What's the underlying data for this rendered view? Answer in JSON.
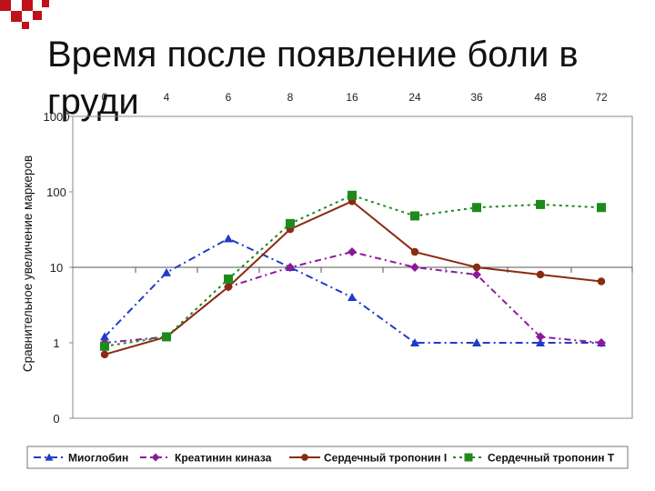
{
  "slide": {
    "title": "Время после появление боли в груди"
  },
  "chart_data": {
    "type": "line",
    "categories": [
      "0",
      "4",
      "6",
      "8",
      "16",
      "24",
      "36",
      "48",
      "72"
    ],
    "xaxis_position": "top",
    "ylabel": "Сравнительное увеличение маркеров",
    "yscale": "log",
    "ylim": [
      0.1,
      1000
    ],
    "yticks": [
      {
        "value": 0.1,
        "label": "0"
      },
      {
        "value": 1,
        "label": "1"
      },
      {
        "value": 10,
        "label": "10"
      },
      {
        "value": 100,
        "label": "100"
      },
      {
        "value": 1000,
        "label": "1000"
      }
    ],
    "grid": false,
    "legend": "bottom",
    "series": [
      {
        "name": "Миоглобин",
        "color": "#1f3cc8",
        "marker": "triangle",
        "dash": "8,4,2,4",
        "values": [
          1.2,
          8.5,
          24,
          10,
          4,
          1,
          1,
          1,
          1
        ]
      },
      {
        "name": "Креатинин киназа",
        "color": "#8b1a9b",
        "marker": "diamond",
        "dash": "7,4,2,4",
        "values": [
          1,
          1.2,
          5.5,
          10,
          16,
          10,
          8,
          1.2,
          1
        ]
      },
      {
        "name": "Сердечный тропонин I",
        "color": "#8b2a12",
        "marker": "circle",
        "dash": "",
        "values": [
          0.7,
          1.2,
          5.5,
          32,
          75,
          16,
          10,
          8,
          6.5
        ]
      },
      {
        "name": "Сердечный тропонин T",
        "color": "#1e8a1e",
        "marker": "square",
        "dash": "3,4",
        "values": [
          0.9,
          1.2,
          7,
          38,
          90,
          48,
          62,
          68,
          62
        ]
      }
    ]
  }
}
